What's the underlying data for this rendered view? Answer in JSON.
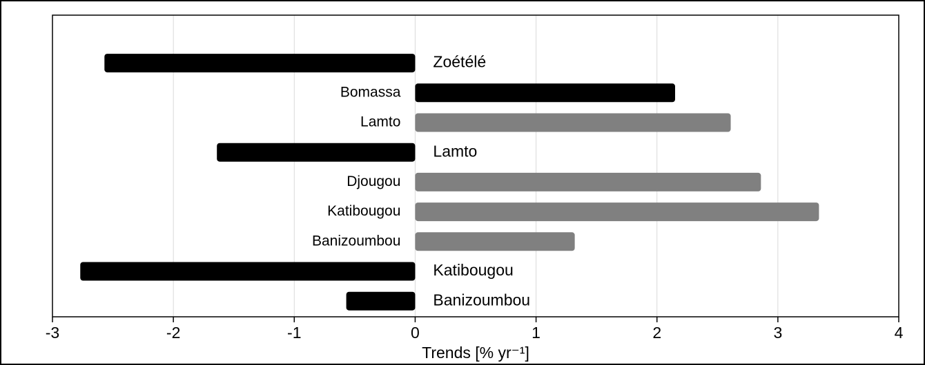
{
  "chart_data": {
    "type": "hbar",
    "categories": [
      "Zoétélé",
      "Bomassa",
      "Lamto",
      "Lamto",
      "Djougou",
      "Katibougou",
      "Banizoumbou",
      "Katibougou",
      "Banizoumbou"
    ],
    "values": [
      -2.57,
      2.15,
      2.61,
      -1.64,
      2.86,
      3.34,
      1.32,
      -2.77,
      -0.57
    ],
    "colors": [
      "#000000",
      "#000000",
      "#808080",
      "#000000",
      "#808080",
      "#808080",
      "#808080",
      "#000000",
      "#000000"
    ],
    "xlabel": "Trends [% yr⁻¹]",
    "xlim": [
      -3,
      4
    ],
    "xticks": [
      -3,
      -2,
      -1,
      0,
      1,
      2,
      3,
      4
    ],
    "grid": true
  }
}
